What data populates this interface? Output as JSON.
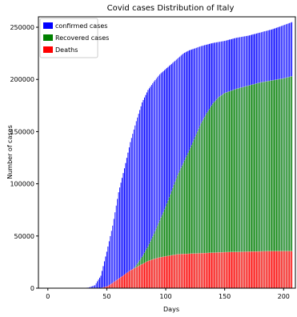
{
  "chart_data": {
    "type": "bar",
    "stacking": "overlaid",
    "title": "Covid cases Distribution of Italy",
    "xlabel": "Days",
    "ylabel": "Number of cases",
    "xlim": [
      -8,
      210
    ],
    "ylim": [
      0,
      260000
    ],
    "xticks": [
      0,
      50,
      100,
      150,
      200
    ],
    "yticks": [
      0,
      50000,
      100000,
      150000,
      200000,
      250000
    ],
    "legend_position": "top-left",
    "grid": false,
    "series_order_drawn": [
      "confirmed cases",
      "Recovered cases",
      "Deaths"
    ],
    "series": [
      {
        "name": "confirmed cases",
        "color": "#0000ff",
        "points": [
          [
            0,
            0
          ],
          [
            30,
            0
          ],
          [
            35,
            800
          ],
          [
            40,
            3000
          ],
          [
            45,
            12000
          ],
          [
            50,
            35000
          ],
          [
            55,
            60000
          ],
          [
            60,
            92000
          ],
          [
            65,
            115000
          ],
          [
            70,
            140000
          ],
          [
            75,
            160000
          ],
          [
            80,
            178000
          ],
          [
            85,
            190000
          ],
          [
            90,
            198000
          ],
          [
            95,
            205000
          ],
          [
            100,
            210000
          ],
          [
            105,
            215000
          ],
          [
            110,
            220000
          ],
          [
            115,
            225000
          ],
          [
            120,
            228000
          ],
          [
            130,
            232000
          ],
          [
            140,
            235000
          ],
          [
            150,
            237000
          ],
          [
            160,
            240000
          ],
          [
            170,
            242000
          ],
          [
            180,
            245000
          ],
          [
            190,
            248000
          ],
          [
            200,
            252000
          ],
          [
            207,
            255000
          ]
        ]
      },
      {
        "name": "Recovered cases",
        "color": "#008000",
        "points": [
          [
            0,
            0
          ],
          [
            45,
            0
          ],
          [
            55,
            2000
          ],
          [
            60,
            5000
          ],
          [
            65,
            9000
          ],
          [
            70,
            15000
          ],
          [
            75,
            22000
          ],
          [
            80,
            30000
          ],
          [
            85,
            40000
          ],
          [
            90,
            52000
          ],
          [
            95,
            65000
          ],
          [
            100,
            78000
          ],
          [
            105,
            93000
          ],
          [
            110,
            108000
          ],
          [
            115,
            120000
          ],
          [
            120,
            132000
          ],
          [
            125,
            145000
          ],
          [
            130,
            158000
          ],
          [
            135,
            168000
          ],
          [
            140,
            177000
          ],
          [
            145,
            183000
          ],
          [
            150,
            187000
          ],
          [
            160,
            191000
          ],
          [
            170,
            194000
          ],
          [
            180,
            197000
          ],
          [
            190,
            199000
          ],
          [
            200,
            201000
          ],
          [
            207,
            203000
          ]
        ]
      },
      {
        "name": "Deaths",
        "color": "#ff0000",
        "points": [
          [
            0,
            0
          ],
          [
            40,
            0
          ],
          [
            45,
            300
          ],
          [
            50,
            1500
          ],
          [
            55,
            5000
          ],
          [
            60,
            9000
          ],
          [
            65,
            13000
          ],
          [
            70,
            17000
          ],
          [
            75,
            20000
          ],
          [
            80,
            23000
          ],
          [
            85,
            26000
          ],
          [
            90,
            28000
          ],
          [
            95,
            29500
          ],
          [
            100,
            30500
          ],
          [
            105,
            31500
          ],
          [
            110,
            32500
          ],
          [
            120,
            33000
          ],
          [
            130,
            33500
          ],
          [
            140,
            34000
          ],
          [
            150,
            34500
          ],
          [
            170,
            35000
          ],
          [
            190,
            35500
          ],
          [
            207,
            35500
          ]
        ]
      }
    ]
  },
  "colors": {
    "edge": "#ffffff",
    "axis": "#000000"
  }
}
